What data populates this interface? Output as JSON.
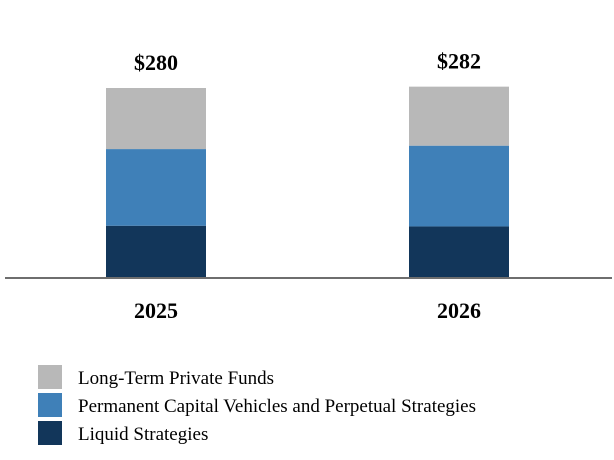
{
  "chart_data": {
    "type": "bar",
    "stacked": true,
    "categories": [
      "2025",
      "2026"
    ],
    "totals": [
      "$280",
      "$282"
    ],
    "series": [
      {
        "name": "Liquid Strategies",
        "color": "#12365a",
        "values": [
          77,
          76
        ]
      },
      {
        "name": "Permanent Capital Vehicles and Perpetual Strategies",
        "color": "#3f80b8",
        "values": [
          113,
          119
        ]
      },
      {
        "name": "Long-Term Private Funds",
        "color": "#b8b8b8",
        "values": [
          90,
          87
        ]
      }
    ],
    "ylim": [
      0,
      280
    ],
    "grid": false,
    "legend_order": [
      "Long-Term Private Funds",
      "Permanent Capital Vehicles and Perpetual Strategies",
      "Liquid Strategies"
    ],
    "legend_placement": "bottom-left"
  }
}
